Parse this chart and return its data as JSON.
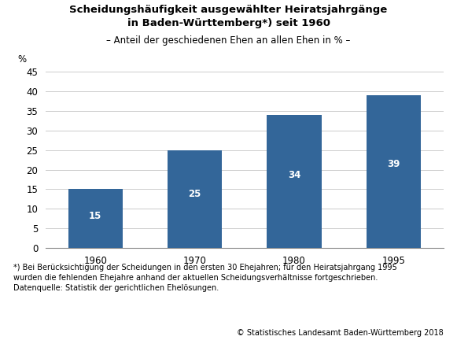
{
  "categories": [
    "1960",
    "1970",
    "1980",
    "1995"
  ],
  "values": [
    15,
    25,
    34,
    39
  ],
  "bar_color": "#336699",
  "title_line1": "Scheidungshäufigkeit ausgewählter Heiratsjahrgänge",
  "title_line2": "in Baden-Württemberg*) seit 1960",
  "subtitle": "– Anteil der geschiedenen Ehen an allen Ehen in % –",
  "ylabel": "%",
  "ylim": [
    0,
    45
  ],
  "yticks": [
    0,
    5,
    10,
    15,
    20,
    25,
    30,
    35,
    40,
    45
  ],
  "footnote_line1": "*) Bei Berücksichtigung der Scheidungen in den ersten 30 Ehejahren; für den Heiratsjahrgang 1995",
  "footnote_line2": "wurden die fehlenden Ehejahre anhand der aktuellen Scheidungsverhältnisse fortgeschrieben.",
  "footnote_line3": "Datenquelle: Statistik der gerichtlichen Ehelösungen.",
  "copyright": "© Statistisches Landesamt Baden-Württemberg 2018",
  "background_color": "#ffffff",
  "plot_bg_color": "#ffffff",
  "grid_color": "#cccccc",
  "label_color": "#ffffff",
  "label_fontsize": 8.5,
  "title_fontsize": 9.5,
  "subtitle_fontsize": 8.5,
  "tick_fontsize": 8.5,
  "footnote_fontsize": 7.0,
  "copyright_fontsize": 7.0,
  "bar_width": 0.55
}
